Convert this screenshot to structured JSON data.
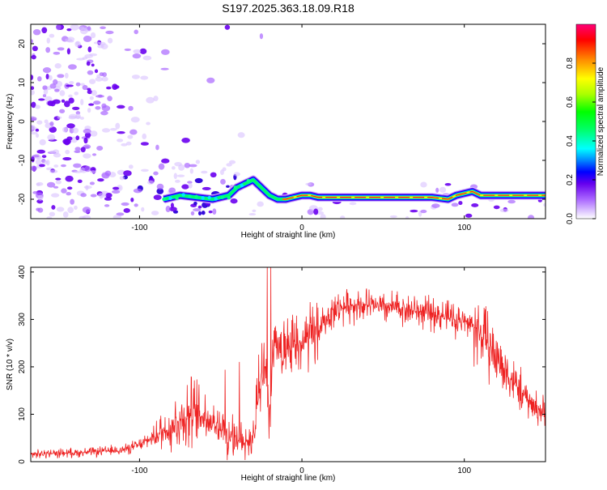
{
  "title": "S197.2025.363.18.09.R18",
  "chart_data": [
    {
      "type": "heatmap",
      "title": "S197.2025.363.18.09.R18",
      "xlabel": "Height of straight line (km)",
      "ylabel": "Frequency (Hz)",
      "xlim": [
        -167,
        150
      ],
      "ylim": [
        -25,
        25
      ],
      "xticks": [
        -100,
        0,
        100
      ],
      "yticks": [
        -20,
        -10,
        0,
        10,
        20
      ],
      "colorbar": {
        "label": "Normalized spectral amplitude",
        "range": [
          0,
          1
        ],
        "ticks": [
          "0.0",
          "0.2",
          "0.4",
          "0.6",
          "0.8"
        ],
        "colors": [
          "#ffffff",
          "#cc99ff",
          "#7700ee",
          "#0000ff",
          "#00aaff",
          "#00ffee",
          "#00ff00",
          "#aaff00",
          "#ffff00",
          "#ff8800",
          "#ff0000",
          "#ff0066"
        ]
      },
      "ridge": {
        "description": "Dominant frequency track (Hz) vs height (km)",
        "x": [
          -85,
          -75,
          -65,
          -55,
          -45,
          -40,
          -35,
          -30,
          -25,
          -20,
          -15,
          -10,
          0,
          5,
          10,
          20,
          40,
          60,
          80,
          90,
          95,
          100,
          105,
          110,
          120,
          150
        ],
        "y": [
          -20,
          -19,
          -19.5,
          -20,
          -19,
          -17,
          -16,
          -15,
          -17,
          -19,
          -20,
          -20,
          -19,
          -19,
          -19.5,
          -19.5,
          -19.5,
          -19.5,
          -19.5,
          -20,
          -19,
          -18.5,
          -18,
          -19,
          -19,
          -19
        ]
      }
    },
    {
      "type": "line",
      "title": "",
      "xlabel": "Height of straight line (km)",
      "ylabel": "SNR (10 * v/v)",
      "xlim": [
        -167,
        150
      ],
      "ylim": [
        0,
        410
      ],
      "xticks": [
        -100,
        0,
        100
      ],
      "yticks": [
        0,
        100,
        200,
        300,
        400
      ],
      "color": "#ee2222",
      "series": [
        {
          "name": "SNR",
          "x": [
            -167,
            -150,
            -130,
            -110,
            -100,
            -90,
            -80,
            -70,
            -60,
            -55,
            -50,
            -45,
            -40,
            -35,
            -30,
            -26,
            -22,
            -20,
            -17,
            -15,
            -12,
            -8,
            -4,
            0,
            5,
            10,
            15,
            20,
            30,
            40,
            50,
            60,
            70,
            80,
            90,
            100,
            105,
            110,
            115,
            120,
            125,
            130,
            140,
            150
          ],
          "y": [
            15,
            18,
            20,
            25,
            35,
            55,
            75,
            100,
            95,
            80,
            70,
            60,
            45,
            40,
            55,
            150,
            210,
            100,
            260,
            240,
            210,
            230,
            250,
            245,
            260,
            275,
            300,
            320,
            330,
            330,
            325,
            325,
            318,
            312,
            305,
            295,
            288,
            270,
            245,
            220,
            195,
            170,
            125,
            100
          ]
        }
      ]
    }
  ]
}
